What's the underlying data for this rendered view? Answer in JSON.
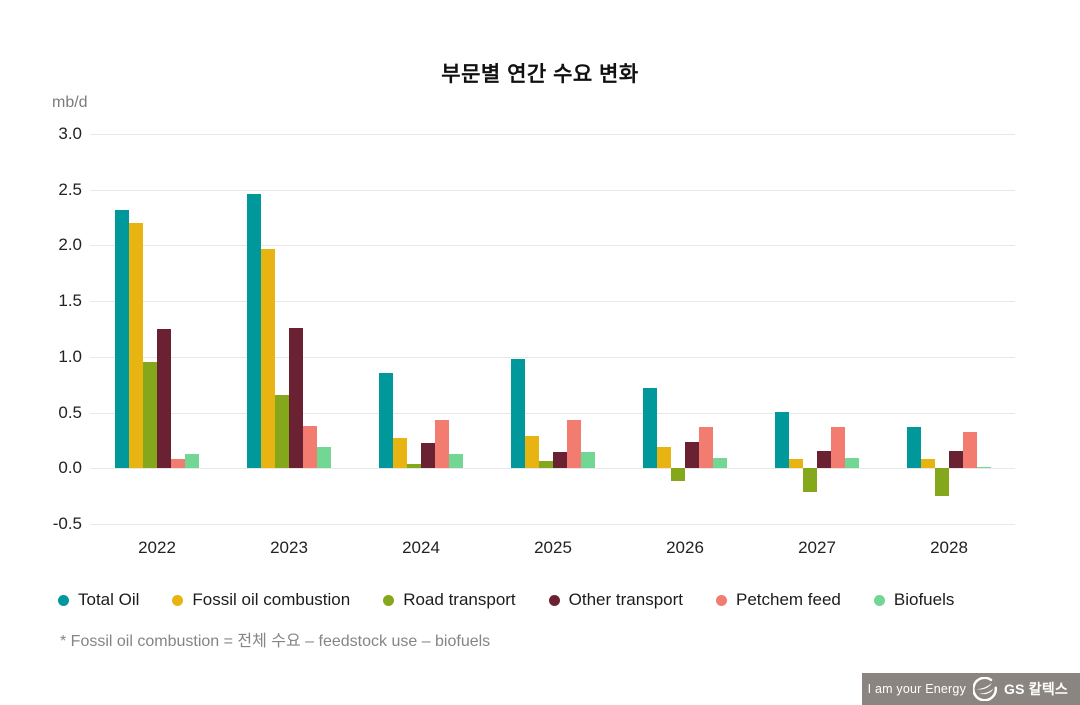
{
  "title": "부문별 연간 수요 변화",
  "unit_label": "mb/d",
  "footnote": "* Fossil oil combustion = 전체 수요 – feedstock use – biofuels",
  "footer": {
    "slogan": "I am your Energy",
    "brand": "GS 칼텍스"
  },
  "colors": {
    "grid": "#e8e8e8",
    "footer_bg": "#8a8580",
    "title_text": "#111111",
    "axis_text": "#222222",
    "muted_text": "#858585"
  },
  "chart_data": {
    "type": "bar",
    "categories": [
      "2022",
      "2023",
      "2024",
      "2025",
      "2026",
      "2027",
      "2028"
    ],
    "series": [
      {
        "name": "Total Oil",
        "color": "#00989b",
        "values": [
          2.32,
          2.46,
          0.86,
          0.98,
          0.72,
          0.51,
          0.37
        ]
      },
      {
        "name": "Fossil oil combustion",
        "color": "#e8b412",
        "values": [
          2.2,
          1.97,
          0.27,
          0.29,
          0.19,
          0.08,
          0.08
        ]
      },
      {
        "name": "Road transport",
        "color": "#85a71b",
        "values": [
          0.95,
          0.66,
          0.04,
          0.07,
          -0.11,
          -0.21,
          -0.25
        ]
      },
      {
        "name": "Other transport",
        "color": "#6a2232",
        "values": [
          1.25,
          1.26,
          0.23,
          0.15,
          0.24,
          0.16,
          0.16
        ]
      },
      {
        "name": "Petchem feed",
        "color": "#f27c6f",
        "values": [
          0.08,
          0.38,
          0.43,
          0.43,
          0.37,
          0.37,
          0.33
        ]
      },
      {
        "name": "Biofuels",
        "color": "#72d694",
        "values": [
          0.13,
          0.19,
          0.13,
          0.15,
          0.09,
          0.09,
          0.01
        ]
      }
    ],
    "title": "부문별 연간 수요 변화",
    "xlabel": "",
    "ylabel": "mb/d",
    "ylim": [
      -0.5,
      3.0
    ],
    "ytick_labels": [
      "3.0",
      "2.5",
      "2.0",
      "1.5",
      "1.0",
      "0.5",
      "0.0",
      "-0.5"
    ],
    "grid": true,
    "legend_position": "bottom"
  }
}
